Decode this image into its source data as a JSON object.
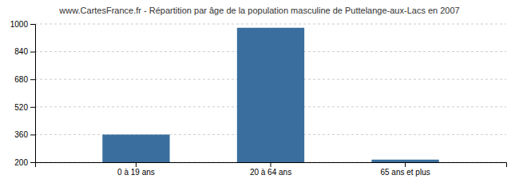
{
  "chart_data": {
    "type": "bar",
    "title": "www.CartesFrance.fr - Répartition par âge de la population masculine de Puttelange-aux-Lacs en 2007",
    "categories": [
      "0 à 19 ans",
      "20 à 64 ans",
      "65 ans et plus"
    ],
    "values": [
      360,
      978,
      215
    ],
    "color": "#3a6e9e",
    "ylim": [
      200,
      1000
    ],
    "yticks": [
      200,
      360,
      520,
      680,
      840,
      1000
    ],
    "grid": true
  }
}
